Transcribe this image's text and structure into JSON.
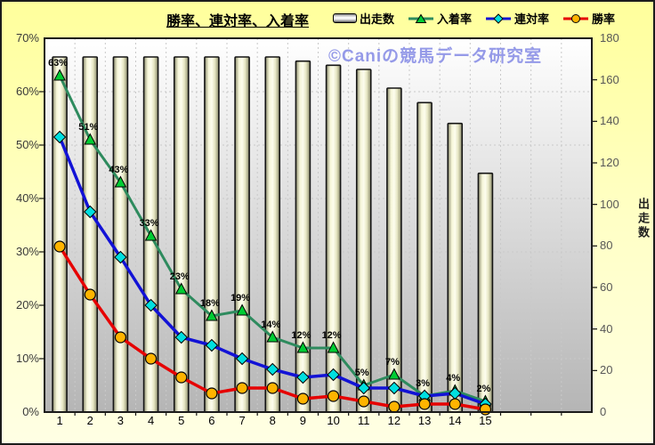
{
  "title": "勝率、連対率、入着率",
  "watermark": "©Caniの競馬データ研究室",
  "legend": {
    "items": [
      {
        "label": "出走数",
        "swatch": "bar"
      },
      {
        "label": "入着率",
        "swatch": "green-line-triangle"
      },
      {
        "label": "連対率",
        "swatch": "blue-line-diamond"
      },
      {
        "label": "勝率",
        "swatch": "red-line-circle"
      }
    ]
  },
  "axes": {
    "left_ticks": [
      "70%",
      "60%",
      "50%",
      "40%",
      "30%",
      "20%",
      "10%",
      "0%"
    ],
    "right_ticks": [
      "180",
      "160",
      "140",
      "120",
      "100",
      "80",
      "60",
      "40",
      "20",
      "0"
    ],
    "right_title": "出走数",
    "x_ticks": [
      "1",
      "2",
      "3",
      "4",
      "5",
      "6",
      "7",
      "8",
      "9",
      "10",
      "11",
      "12",
      "13",
      "14",
      "15"
    ]
  },
  "colors": {
    "background_top": "#ffff9c",
    "background_bottom": "#ffffe4",
    "plot_top": "#ffffff",
    "plot_bottom": "#b5b5b5",
    "grid": "#c9c9c9",
    "plot_border": "#1a1a1a",
    "bar_edge": "#8a8a6c",
    "bar_light": "#f6f6d8",
    "bar_highlight": "#fdfdee",
    "bar_mid": "#e6e6c2",
    "bar_border": "#151515",
    "watermark": "#959ae8",
    "point_label": "#000000"
  },
  "chart_data": {
    "type": "combo (bar + 3 lines)",
    "categories": [
      1,
      2,
      3,
      4,
      5,
      6,
      7,
      8,
      9,
      10,
      11,
      12,
      13,
      14,
      15
    ],
    "series": [
      {
        "name": "出走数",
        "kind": "bar",
        "axis": "right",
        "values": [
          171,
          171,
          171,
          171,
          171,
          171,
          171,
          171,
          169,
          167,
          165,
          156,
          149,
          139,
          115
        ]
      },
      {
        "name": "入着率",
        "kind": "line",
        "marker": "triangle",
        "axis": "left",
        "line_color": "#2e8b5e",
        "marker_color": "#00cc33",
        "values": [
          63,
          51,
          43,
          33,
          23,
          18,
          19,
          14,
          12,
          12,
          5,
          7,
          3,
          4,
          2
        ],
        "point_labels": [
          "63%",
          "51%",
          "43%",
          "33%",
          "23%",
          "18%",
          "19%",
          "14%",
          "12%",
          "12%",
          "5%",
          "7%",
          "3%",
          "4%",
          "2%"
        ]
      },
      {
        "name": "連対率",
        "kind": "line",
        "marker": "diamond",
        "axis": "left",
        "line_color": "#1212d6",
        "marker_color": "#00e0e0",
        "values": [
          51.5,
          37.5,
          29,
          20,
          14,
          12.5,
          10,
          8,
          6.5,
          7,
          4.5,
          4.5,
          3,
          3.5,
          1.5
        ]
      },
      {
        "name": "勝率",
        "kind": "line",
        "marker": "circle",
        "axis": "left",
        "line_color": "#e60000",
        "marker_color": "#ffb400",
        "values": [
          31,
          22,
          14,
          10,
          6.5,
          3.5,
          4.5,
          4.5,
          2.5,
          3,
          2,
          1,
          1.5,
          1.5,
          0.5
        ]
      }
    ],
    "left_axis": {
      "min": 0,
      "max": 70,
      "step": 10,
      "unit": "%"
    },
    "right_axis": {
      "min": 0,
      "max": 180,
      "step": 20,
      "title": "出走数"
    },
    "x_axis": {
      "slots": 18
    },
    "grid": true,
    "legend_position": "top"
  }
}
